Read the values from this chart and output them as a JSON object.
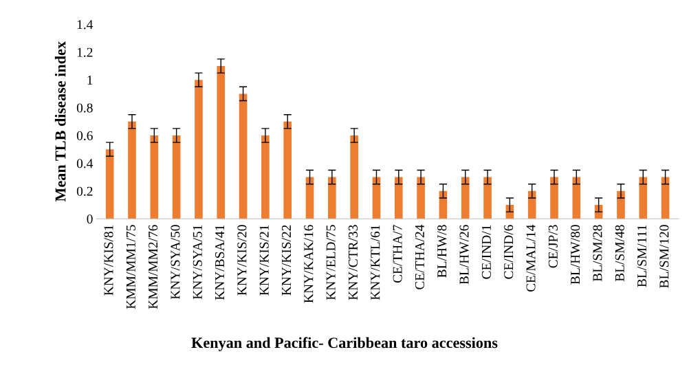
{
  "chart_data": {
    "type": "bar",
    "xlabel": "Kenyan and Pacific- Caribbean taro accessions",
    "ylabel": "Mean TLB disease index",
    "categories": [
      "KNY/KIS/81",
      "KMM/MM1/75",
      "KMM/MM2/76",
      "KNY/SYA/50",
      "KNY/SYA/51",
      "KNY/BSA/41",
      "KNY/KIS/20",
      "KNY/KIS/21",
      "KNY/KIS/22",
      "KNY/KAK/16",
      "KNY/ELD/75",
      "KNY/CTR/33",
      "KNY/KTL/61",
      "CE/THA/7",
      "CE/THA/24",
      "BL/HW/8",
      "BL/HW/26",
      "CE/IND/1",
      "CE/IND/6",
      "CE/MAL/14",
      "CE/JP/3",
      "BL/HW/80",
      "BL/SM/28",
      "BL/SM/48",
      "BL/SM/111",
      "BL/SM/120"
    ],
    "values": [
      0.5,
      0.7,
      0.6,
      0.6,
      1.0,
      1.1,
      0.9,
      0.6,
      0.7,
      0.3,
      0.3,
      0.6,
      0.3,
      0.3,
      0.3,
      0.2,
      0.3,
      0.3,
      0.1,
      0.2,
      0.3,
      0.3,
      0.1,
      0.2,
      0.3,
      0.3
    ],
    "errors": [
      0.05,
      0.05,
      0.05,
      0.05,
      0.05,
      0.05,
      0.05,
      0.05,
      0.05,
      0.05,
      0.05,
      0.05,
      0.05,
      0.05,
      0.05,
      0.05,
      0.05,
      0.05,
      0.05,
      0.05,
      0.05,
      0.05,
      0.05,
      0.05,
      0.05,
      0.05
    ],
    "color": "#ed7d31",
    "ylim": [
      0,
      1.4
    ],
    "yticks": [
      0,
      0.2,
      0.4,
      0.6,
      0.8,
      1,
      1.2,
      1.4
    ],
    "grid": false,
    "legend": false
  }
}
